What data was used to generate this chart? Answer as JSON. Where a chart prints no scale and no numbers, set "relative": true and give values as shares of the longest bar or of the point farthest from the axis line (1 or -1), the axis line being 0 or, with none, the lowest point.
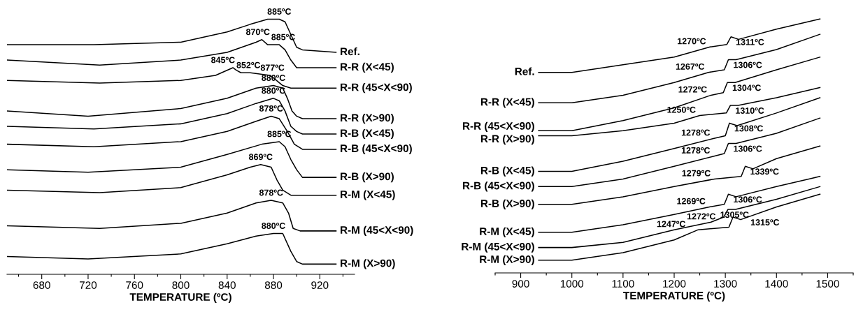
{
  "chart_data": [
    {
      "type": "line",
      "relative": true,
      "xlabel": "TEMPERATURE (ºC)",
      "xlim": [
        650,
        950
      ],
      "xticks": [
        {
          "value": 660,
          "label": null
        },
        680,
        {
          "value": 700,
          "label": null
        },
        720,
        {
          "value": 740,
          "label": null
        },
        760,
        {
          "value": 780,
          "label": null
        },
        800,
        {
          "value": 820,
          "label": null
        },
        840,
        {
          "value": 860,
          "label": null
        },
        880,
        {
          "value": 900,
          "label": null
        },
        920,
        {
          "value": 940,
          "label": null
        }
      ],
      "grid": false,
      "legend": false,
      "marker": "none",
      "line_style": "solid",
      "tick_labels": "x",
      "series": [
        {
          "name": "Ref.",
          "color": "#000000",
          "x": [
            650,
            725,
            800,
            840,
            860,
            875,
            885,
            890,
            895,
            900,
            905,
            934
          ],
          "values": [
            0.9,
            0.9,
            0.91,
            0.95,
            0.98,
            1.0,
            1.0,
            0.99,
            0.94,
            0.89,
            0.88,
            0.87
          ]
        },
        {
          "name": "R-R (X<45)",
          "color": "#000000",
          "x": [
            650,
            730,
            800,
            840,
            865,
            870,
            875,
            885,
            890,
            895,
            900,
            905,
            934
          ],
          "values": [
            0.84,
            0.82,
            0.84,
            0.87,
            0.91,
            0.92,
            0.9,
            0.9,
            0.88,
            0.84,
            0.81,
            0.81,
            0.81
          ]
        },
        {
          "name": "R-R (45<X<90)",
          "color": "#000000",
          "x": [
            650,
            730,
            800,
            830,
            845,
            848,
            852,
            860,
            877,
            880,
            888,
            895,
            934
          ],
          "values": [
            0.76,
            0.75,
            0.76,
            0.78,
            0.81,
            0.8,
            0.79,
            0.79,
            0.78,
            0.77,
            0.74,
            0.73,
            0.73
          ]
        },
        {
          "name": "R-R (X>90)",
          "color": "#000000",
          "x": [
            650,
            720,
            800,
            840,
            865,
            880,
            888,
            892,
            896,
            900,
            905,
            934
          ],
          "values": [
            0.64,
            0.62,
            0.65,
            0.69,
            0.73,
            0.74,
            0.73,
            0.69,
            0.64,
            0.62,
            0.61,
            0.61
          ]
        },
        {
          "name": "R-B (X<45)",
          "color": "#000000",
          "x": [
            650,
            725,
            800,
            840,
            865,
            880,
            885,
            890,
            895,
            900,
            905,
            934
          ],
          "values": [
            0.58,
            0.57,
            0.59,
            0.63,
            0.67,
            0.69,
            0.68,
            0.64,
            0.58,
            0.56,
            0.55,
            0.55
          ]
        },
        {
          "name": "R-B (45<X<90)",
          "color": "#000000",
          "x": [
            650,
            725,
            800,
            840,
            865,
            878,
            885,
            892,
            898,
            905,
            934
          ],
          "values": [
            0.51,
            0.5,
            0.52,
            0.56,
            0.6,
            0.62,
            0.61,
            0.56,
            0.51,
            0.49,
            0.49
          ]
        },
        {
          "name": "R-B (X>90)",
          "color": "#000000",
          "x": [
            650,
            720,
            800,
            840,
            870,
            885,
            890,
            895,
            900,
            905,
            934
          ],
          "values": [
            0.41,
            0.4,
            0.42,
            0.47,
            0.51,
            0.52,
            0.5,
            0.45,
            0.41,
            0.38,
            0.38
          ]
        },
        {
          "name": "R-M (X<45)",
          "color": "#000000",
          "x": [
            650,
            730,
            800,
            840,
            860,
            869,
            878,
            883,
            888,
            895,
            934
          ],
          "values": [
            0.33,
            0.32,
            0.34,
            0.39,
            0.42,
            0.43,
            0.42,
            0.37,
            0.33,
            0.31,
            0.31
          ]
        },
        {
          "name": "R-M (45<X<90)",
          "color": "#000000",
          "x": [
            650,
            730,
            800,
            840,
            865,
            878,
            888,
            893,
            897,
            903,
            934
          ],
          "values": [
            0.19,
            0.18,
            0.2,
            0.24,
            0.28,
            0.29,
            0.28,
            0.24,
            0.18,
            0.17,
            0.17
          ]
        },
        {
          "name": "R-M (X>90)",
          "color": "#000000",
          "x": [
            650,
            720,
            800,
            840,
            865,
            880,
            888,
            895,
            900,
            905,
            934
          ],
          "values": [
            0.07,
            0.06,
            0.08,
            0.12,
            0.15,
            0.16,
            0.16,
            0.09,
            0.05,
            0.04,
            0.04
          ]
        }
      ],
      "annotations": [
        {
          "text": "885ºC",
          "x": 885,
          "y": 1.0
        },
        {
          "text": "870ºC",
          "x": 870,
          "y": 0.92
        },
        {
          "text": "885ºC",
          "x": 885,
          "y": 0.9
        },
        {
          "text": "845ºC",
          "x": 845,
          "y": 0.81
        },
        {
          "text": "852ºC",
          "x": 852,
          "y": 0.79
        },
        {
          "text": "877ºC",
          "x": 877,
          "y": 0.78
        },
        {
          "text": "880ºC",
          "x": 880,
          "y": 0.74
        },
        {
          "text": "880ºC",
          "x": 880,
          "y": 0.69
        },
        {
          "text": "878ºC",
          "x": 878,
          "y": 0.62
        },
        {
          "text": "885ºC",
          "x": 885,
          "y": 0.52
        },
        {
          "text": "869ºC",
          "x": 869,
          "y": 0.43
        },
        {
          "text": "878ºC",
          "x": 878,
          "y": 0.29
        },
        {
          "text": "880ºC",
          "x": 880,
          "y": 0.16
        }
      ]
    },
    {
      "type": "line",
      "relative": true,
      "xlabel": "TEMPERATURE (ºC)",
      "xlim": [
        850,
        1550
      ],
      "xticks": [
        {
          "value": 850,
          "label": null
        },
        900,
        {
          "value": 950,
          "label": null
        },
        1000,
        {
          "value": 1050,
          "label": null
        },
        1100,
        {
          "value": 1150,
          "label": null
        },
        1200,
        {
          "value": 1250,
          "label": null
        },
        1300,
        {
          "value": 1350,
          "label": null
        },
        1400,
        {
          "value": 1450,
          "label": null
        },
        1500,
        {
          "value": 1550,
          "label": null
        }
      ],
      "grid": false,
      "legend": false,
      "marker": "none",
      "line_style": "solid",
      "tick_labels": "x",
      "series": [
        {
          "name": "Ref.",
          "color": "#000000",
          "x": [
            935,
            1000,
            1100,
            1200,
            1270,
            1303,
            1311,
            1326,
            1400,
            1485
          ],
          "values": [
            0.79,
            0.79,
            0.82,
            0.85,
            0.89,
            0.9,
            0.93,
            0.92,
            0.96,
            1.0
          ]
        },
        {
          "name": "R-R (X<45)",
          "color": "#000000",
          "x": [
            935,
            1000,
            1100,
            1200,
            1267,
            1298,
            1306,
            1321,
            1400,
            1485
          ],
          "values": [
            0.67,
            0.67,
            0.7,
            0.75,
            0.79,
            0.8,
            0.84,
            0.84,
            0.88,
            0.94
          ]
        },
        {
          "name": "R-R (45<X<90)",
          "color": "#000000",
          "x": [
            935,
            1000,
            1100,
            1200,
            1272,
            1296,
            1304,
            1319,
            1400,
            1485
          ],
          "values": [
            0.56,
            0.56,
            0.6,
            0.65,
            0.7,
            0.71,
            0.75,
            0.75,
            0.8,
            0.85
          ]
        },
        {
          "name": "R-R (X>90)",
          "color": "#000000",
          "x": [
            935,
            1000,
            1100,
            1200,
            1250,
            1302,
            1310,
            1325,
            1400,
            1485
          ],
          "values": [
            0.54,
            0.54,
            0.56,
            0.59,
            0.62,
            0.63,
            0.66,
            0.66,
            0.69,
            0.73
          ]
        },
        {
          "name": "R-B (X<45)",
          "color": "#000000",
          "x": [
            935,
            1000,
            1100,
            1200,
            1278,
            1300,
            1308,
            1323,
            1400,
            1485
          ],
          "values": [
            0.4,
            0.4,
            0.44,
            0.49,
            0.53,
            0.54,
            0.59,
            0.58,
            0.63,
            0.69
          ]
        },
        {
          "name": "R-B (45<X<90)",
          "color": "#000000",
          "x": [
            935,
            1000,
            1100,
            1200,
            1278,
            1298,
            1306,
            1321,
            1400,
            1485
          ],
          "values": [
            0.34,
            0.34,
            0.37,
            0.42,
            0.46,
            0.47,
            0.51,
            0.51,
            0.55,
            0.61
          ]
        },
        {
          "name": "R-B (X>90)",
          "color": "#000000",
          "x": [
            935,
            1000,
            1100,
            1200,
            1279,
            1331,
            1339,
            1354,
            1400,
            1485
          ],
          "values": [
            0.27,
            0.27,
            0.3,
            0.34,
            0.37,
            0.38,
            0.42,
            0.41,
            0.45,
            0.5
          ]
        },
        {
          "name": "R-M (X<45)",
          "color": "#000000",
          "x": [
            935,
            1000,
            1100,
            1200,
            1269,
            1298,
            1306,
            1321,
            1400,
            1485
          ],
          "values": [
            0.16,
            0.16,
            0.19,
            0.23,
            0.26,
            0.27,
            0.31,
            0.3,
            0.34,
            0.38
          ]
        },
        {
          "name": "R-M (45<X<90)",
          "color": "#000000",
          "x": [
            935,
            1000,
            1100,
            1200,
            1272,
            1297,
            1305,
            1320,
            1400,
            1485
          ],
          "values": [
            0.1,
            0.1,
            0.12,
            0.17,
            0.2,
            0.22,
            0.25,
            0.25,
            0.29,
            0.34
          ]
        },
        {
          "name": "R-M (X>90)",
          "color": "#000000",
          "x": [
            935,
            1000,
            1100,
            1200,
            1247,
            1307,
            1315,
            1330,
            1400,
            1485
          ],
          "values": [
            0.05,
            0.05,
            0.08,
            0.13,
            0.17,
            0.18,
            0.22,
            0.21,
            0.26,
            0.31
          ]
        }
      ],
      "annotations": [
        {
          "text": "1270ºC",
          "x": 1270,
          "y": 0.89
        },
        {
          "text": "1311ºC",
          "x": 1311,
          "y": 0.93
        },
        {
          "text": "1267ºC",
          "x": 1267,
          "y": 0.79
        },
        {
          "text": "1306ºC",
          "x": 1306,
          "y": 0.84
        },
        {
          "text": "1272ºC",
          "x": 1272,
          "y": 0.7
        },
        {
          "text": "1304ºC",
          "x": 1304,
          "y": 0.75
        },
        {
          "text": "1250ºC",
          "x": 1250,
          "y": 0.62
        },
        {
          "text": "1310ºC",
          "x": 1310,
          "y": 0.66
        },
        {
          "text": "1278ºC",
          "x": 1278,
          "y": 0.53
        },
        {
          "text": "1308ºC",
          "x": 1308,
          "y": 0.59
        },
        {
          "text": "1278ºC",
          "x": 1278,
          "y": 0.46
        },
        {
          "text": "1306ºC",
          "x": 1306,
          "y": 0.51
        },
        {
          "text": "1279ºC",
          "x": 1279,
          "y": 0.37
        },
        {
          "text": "1339ºC",
          "x": 1339,
          "y": 0.42
        },
        {
          "text": "1269ºC",
          "x": 1269,
          "y": 0.26
        },
        {
          "text": "1306ºC",
          "x": 1306,
          "y": 0.31
        },
        {
          "text": "1272ºC",
          "x": 1272,
          "y": 0.2
        },
        {
          "text": "1305ºC",
          "x": 1305,
          "y": 0.25
        },
        {
          "text": "1247ºC",
          "x": 1247,
          "y": 0.17
        },
        {
          "text": "1315ºC",
          "x": 1315,
          "y": 0.22
        }
      ]
    }
  ]
}
